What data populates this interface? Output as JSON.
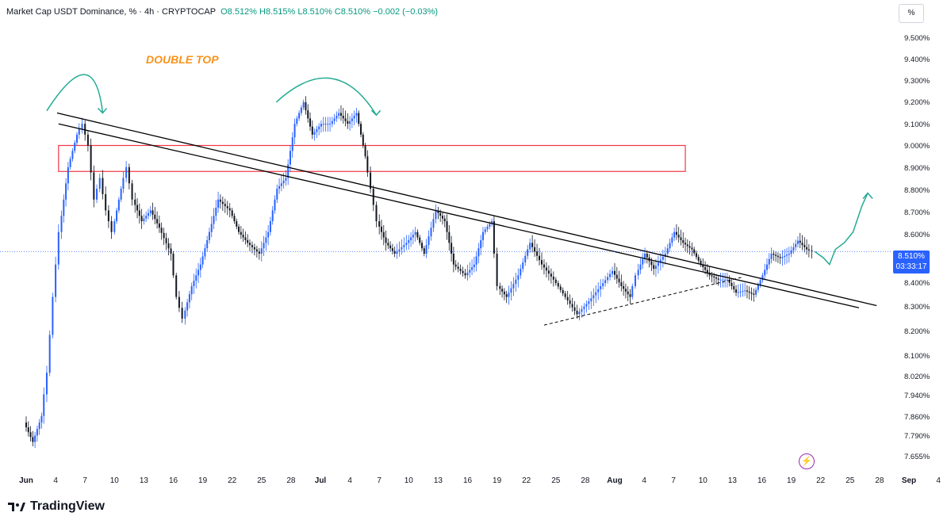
{
  "header": {
    "symbol": "Market Cap USDT Dominance, % · 4h · CRYPTOCAP",
    "ohlc": "O8.512% H8.515% L8.510% C8.510% −0.002 (−0.03%)"
  },
  "unit_button": "%",
  "annotation": {
    "text": "DOUBLE TOP",
    "color": "#f7931a"
  },
  "current_price": {
    "price": "8.510%",
    "countdown": "03:33:17",
    "color": "#2962ff"
  },
  "footer": {
    "brand": "TradingView"
  },
  "icons": {
    "logo": "tradingview-logo-icon",
    "bolt": "lightning-icon"
  },
  "colors": {
    "candle": "#2962ff",
    "candle_dark": "#131722",
    "trend": "#000000",
    "zone": "#f23645",
    "projection": "#22ab94"
  },
  "chart_data": {
    "type": "line",
    "title": "Market Cap USDT Dominance, % · 4h · CRYPTOCAP",
    "xlabel": "",
    "ylabel": "%",
    "ylim": [
      7.6,
      9.55
    ],
    "grid": false,
    "y_ticks": [
      "9.500%",
      "9.400%",
      "9.300%",
      "9.200%",
      "9.100%",
      "9.000%",
      "8.900%",
      "8.800%",
      "8.700%",
      "8.600%",
      "8.500%",
      "8.400%",
      "8.300%",
      "8.200%",
      "8.100%",
      "8.020%",
      "7.940%",
      "7.860%",
      "7.790%",
      "7.655%"
    ],
    "x_ticks": [
      "Jun",
      "4",
      "7",
      "10",
      "13",
      "16",
      "19",
      "22",
      "25",
      "28",
      "Jul",
      "4",
      "7",
      "10",
      "13",
      "16",
      "19",
      "22",
      "25",
      "28",
      "Aug",
      "4",
      "7",
      "10",
      "13",
      "16",
      "19",
      "22",
      "25",
      "28",
      "Sep",
      "4"
    ],
    "x_tick_index": [
      0,
      1,
      2,
      3,
      4,
      5,
      6,
      7,
      8,
      9,
      10,
      11,
      12,
      13,
      14,
      15,
      16,
      17,
      18,
      19,
      20,
      21,
      22,
      23,
      24,
      25,
      26,
      27,
      28,
      29,
      30,
      31
    ],
    "series": [
      {
        "values": [
          [
            0,
            7.72
          ],
          [
            0.3,
            7.63
          ],
          [
            0.6,
            7.75
          ],
          [
            0.8,
            7.95
          ],
          [
            1.0,
            8.3
          ],
          [
            1.2,
            8.6
          ],
          [
            1.5,
            8.9
          ],
          [
            1.8,
            9.05
          ],
          [
            2.0,
            9.1
          ],
          [
            2.2,
            9.0
          ],
          [
            2.4,
            8.75
          ],
          [
            2.6,
            8.85
          ],
          [
            2.8,
            8.7
          ],
          [
            3.0,
            8.6
          ],
          [
            3.3,
            8.8
          ],
          [
            3.5,
            8.9
          ],
          [
            3.7,
            8.75
          ],
          [
            4.0,
            8.65
          ],
          [
            4.3,
            8.7
          ],
          [
            4.6,
            8.62
          ],
          [
            5.0,
            8.5
          ],
          [
            5.2,
            8.3
          ],
          [
            5.4,
            8.2
          ],
          [
            5.7,
            8.35
          ],
          [
            6.0,
            8.45
          ],
          [
            6.3,
            8.6
          ],
          [
            6.6,
            8.75
          ],
          [
            7.0,
            8.7
          ],
          [
            7.3,
            8.6
          ],
          [
            7.6,
            8.55
          ],
          [
            8.0,
            8.5
          ],
          [
            8.3,
            8.6
          ],
          [
            8.6,
            8.8
          ],
          [
            8.9,
            8.85
          ],
          [
            9.2,
            9.1
          ],
          [
            9.5,
            9.2
          ],
          [
            9.8,
            9.05
          ],
          [
            10.1,
            9.1
          ],
          [
            10.4,
            9.1
          ],
          [
            10.7,
            9.15
          ],
          [
            11.0,
            9.1
          ],
          [
            11.3,
            9.15
          ],
          [
            11.6,
            8.95
          ],
          [
            11.8,
            8.8
          ],
          [
            12.0,
            8.65
          ],
          [
            12.3,
            8.55
          ],
          [
            12.6,
            8.5
          ],
          [
            13.0,
            8.55
          ],
          [
            13.3,
            8.6
          ],
          [
            13.6,
            8.5
          ],
          [
            14.0,
            8.7
          ],
          [
            14.3,
            8.65
          ],
          [
            14.6,
            8.45
          ],
          [
            15.0,
            8.4
          ],
          [
            15.3,
            8.45
          ],
          [
            15.6,
            8.6
          ],
          [
            15.9,
            8.65
          ],
          [
            16.1,
            8.35
          ],
          [
            16.4,
            8.3
          ],
          [
            16.8,
            8.4
          ],
          [
            17.2,
            8.55
          ],
          [
            17.6,
            8.45
          ],
          [
            18.0,
            8.38
          ],
          [
            18.4,
            8.3
          ],
          [
            18.8,
            8.22
          ],
          [
            19.2,
            8.28
          ],
          [
            19.6,
            8.35
          ],
          [
            20.0,
            8.42
          ],
          [
            20.3,
            8.35
          ],
          [
            20.6,
            8.3
          ],
          [
            20.8,
            8.4
          ],
          [
            21.1,
            8.5
          ],
          [
            21.4,
            8.43
          ],
          [
            21.8,
            8.5
          ],
          [
            22.1,
            8.6
          ],
          [
            22.4,
            8.55
          ],
          [
            22.7,
            8.52
          ],
          [
            23.0,
            8.45
          ],
          [
            23.3,
            8.4
          ],
          [
            23.6,
            8.38
          ],
          [
            23.9,
            8.38
          ],
          [
            24.2,
            8.32
          ],
          [
            24.5,
            8.33
          ],
          [
            24.8,
            8.31
          ],
          [
            25.1,
            8.4
          ],
          [
            25.4,
            8.5
          ],
          [
            25.7,
            8.48
          ],
          [
            26.0,
            8.5
          ],
          [
            26.3,
            8.56
          ],
          [
            26.6,
            8.52
          ],
          [
            26.8,
            8.51
          ]
        ]
      },
      {
        "name": "",
        "values": [
          [
            26.8,
            8.51
          ],
          [
            27.1,
            8.48
          ],
          [
            27.3,
            8.45
          ],
          [
            27.5,
            8.52
          ],
          [
            27.8,
            8.55
          ],
          [
            28.1,
            8.6
          ],
          [
            28.4,
            8.72
          ],
          [
            28.6,
            8.78
          ]
        ]
      }
    ],
    "trendlines": [
      [
        [
          1.05,
          9.15
        ],
        [
          28.9,
          8.26
        ]
      ],
      [
        [
          1.1,
          9.1
        ],
        [
          28.3,
          8.25
        ]
      ]
    ],
    "support_dashed": [
      [
        17.6,
        8.17
      ],
      [
        24.3,
        8.39
      ]
    ],
    "resistance_zone": {
      "y": [
        8.88,
        9.0
      ],
      "x": [
        1.1,
        22.4
      ]
    }
  }
}
